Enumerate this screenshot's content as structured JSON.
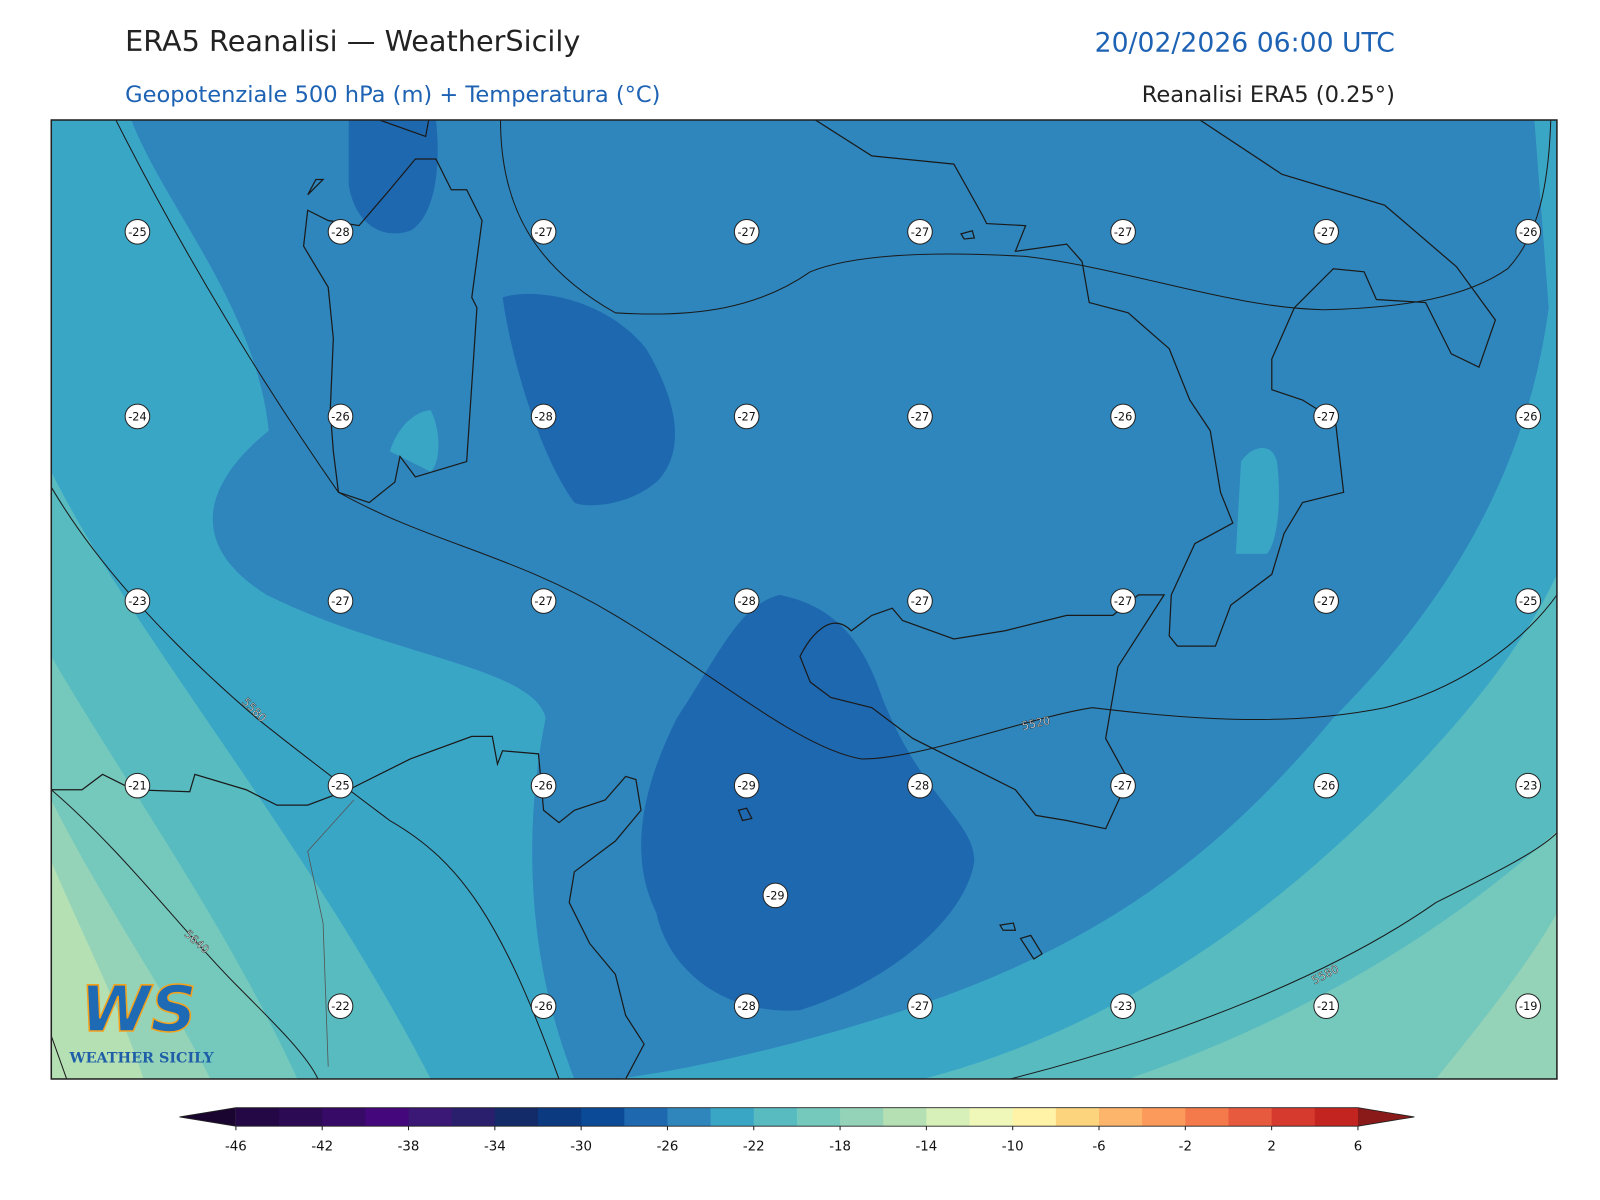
{
  "header": {
    "title": "ERA5 Reanalisi — WeatherSicily",
    "datetime": "20/02/2026 06:00 UTC",
    "subtitle": "Geopotenziale 500 hPa (m) + Temperatura (°C)",
    "source": "Reanalisi ERA5 (0.25°)"
  },
  "temperature_grid": {
    "rows": [
      [
        -25,
        -28,
        -27,
        -27,
        -27,
        -27,
        -27,
        -26
      ],
      [
        -24,
        -26,
        -28,
        -27,
        -27,
        -26,
        -27,
        -26
      ],
      [
        -23,
        -27,
        -27,
        -28,
        -27,
        -27,
        -27,
        -25
      ],
      [
        -21,
        -25,
        -26,
        -29,
        -28,
        -27,
        -26,
        -23
      ],
      [
        null,
        -22,
        -26,
        -28,
        -27,
        -23,
        -21,
        -19
      ]
    ]
  },
  "extra_labels": [
    -29
  ],
  "contour_labels": [
    5580,
    5520,
    5640,
    5580
  ],
  "logo": {
    "mark": "WS",
    "name": "WEATHER SICILY"
  },
  "colorbar": {
    "lim": [
      -46,
      6
    ],
    "ticks": [
      -46,
      -42,
      -38,
      -34,
      -30,
      -26,
      -22,
      -18,
      -14,
      -10,
      -6,
      -2,
      2,
      6
    ],
    "colors": [
      "#240846",
      "#2c0a54",
      "#360a66",
      "#45077c",
      "#3b1776",
      "#291f6c",
      "#132c69",
      "#0c3a80",
      "#0a4a96",
      "#1e68b0",
      "#2e86bc",
      "#3aa6c6",
      "#57bbc0",
      "#75c8bc",
      "#94d3b8",
      "#b5e0b4",
      "#d7efb8",
      "#eff7b9",
      "#fff3a8",
      "#fdd47e",
      "#fdb56b",
      "#fb9a5a",
      "#f47a4c",
      "#e85a3e",
      "#d63a2f",
      "#c4241f"
    ],
    "extend_colors": [
      "#1a0530",
      "#8a1a1a"
    ]
  }
}
